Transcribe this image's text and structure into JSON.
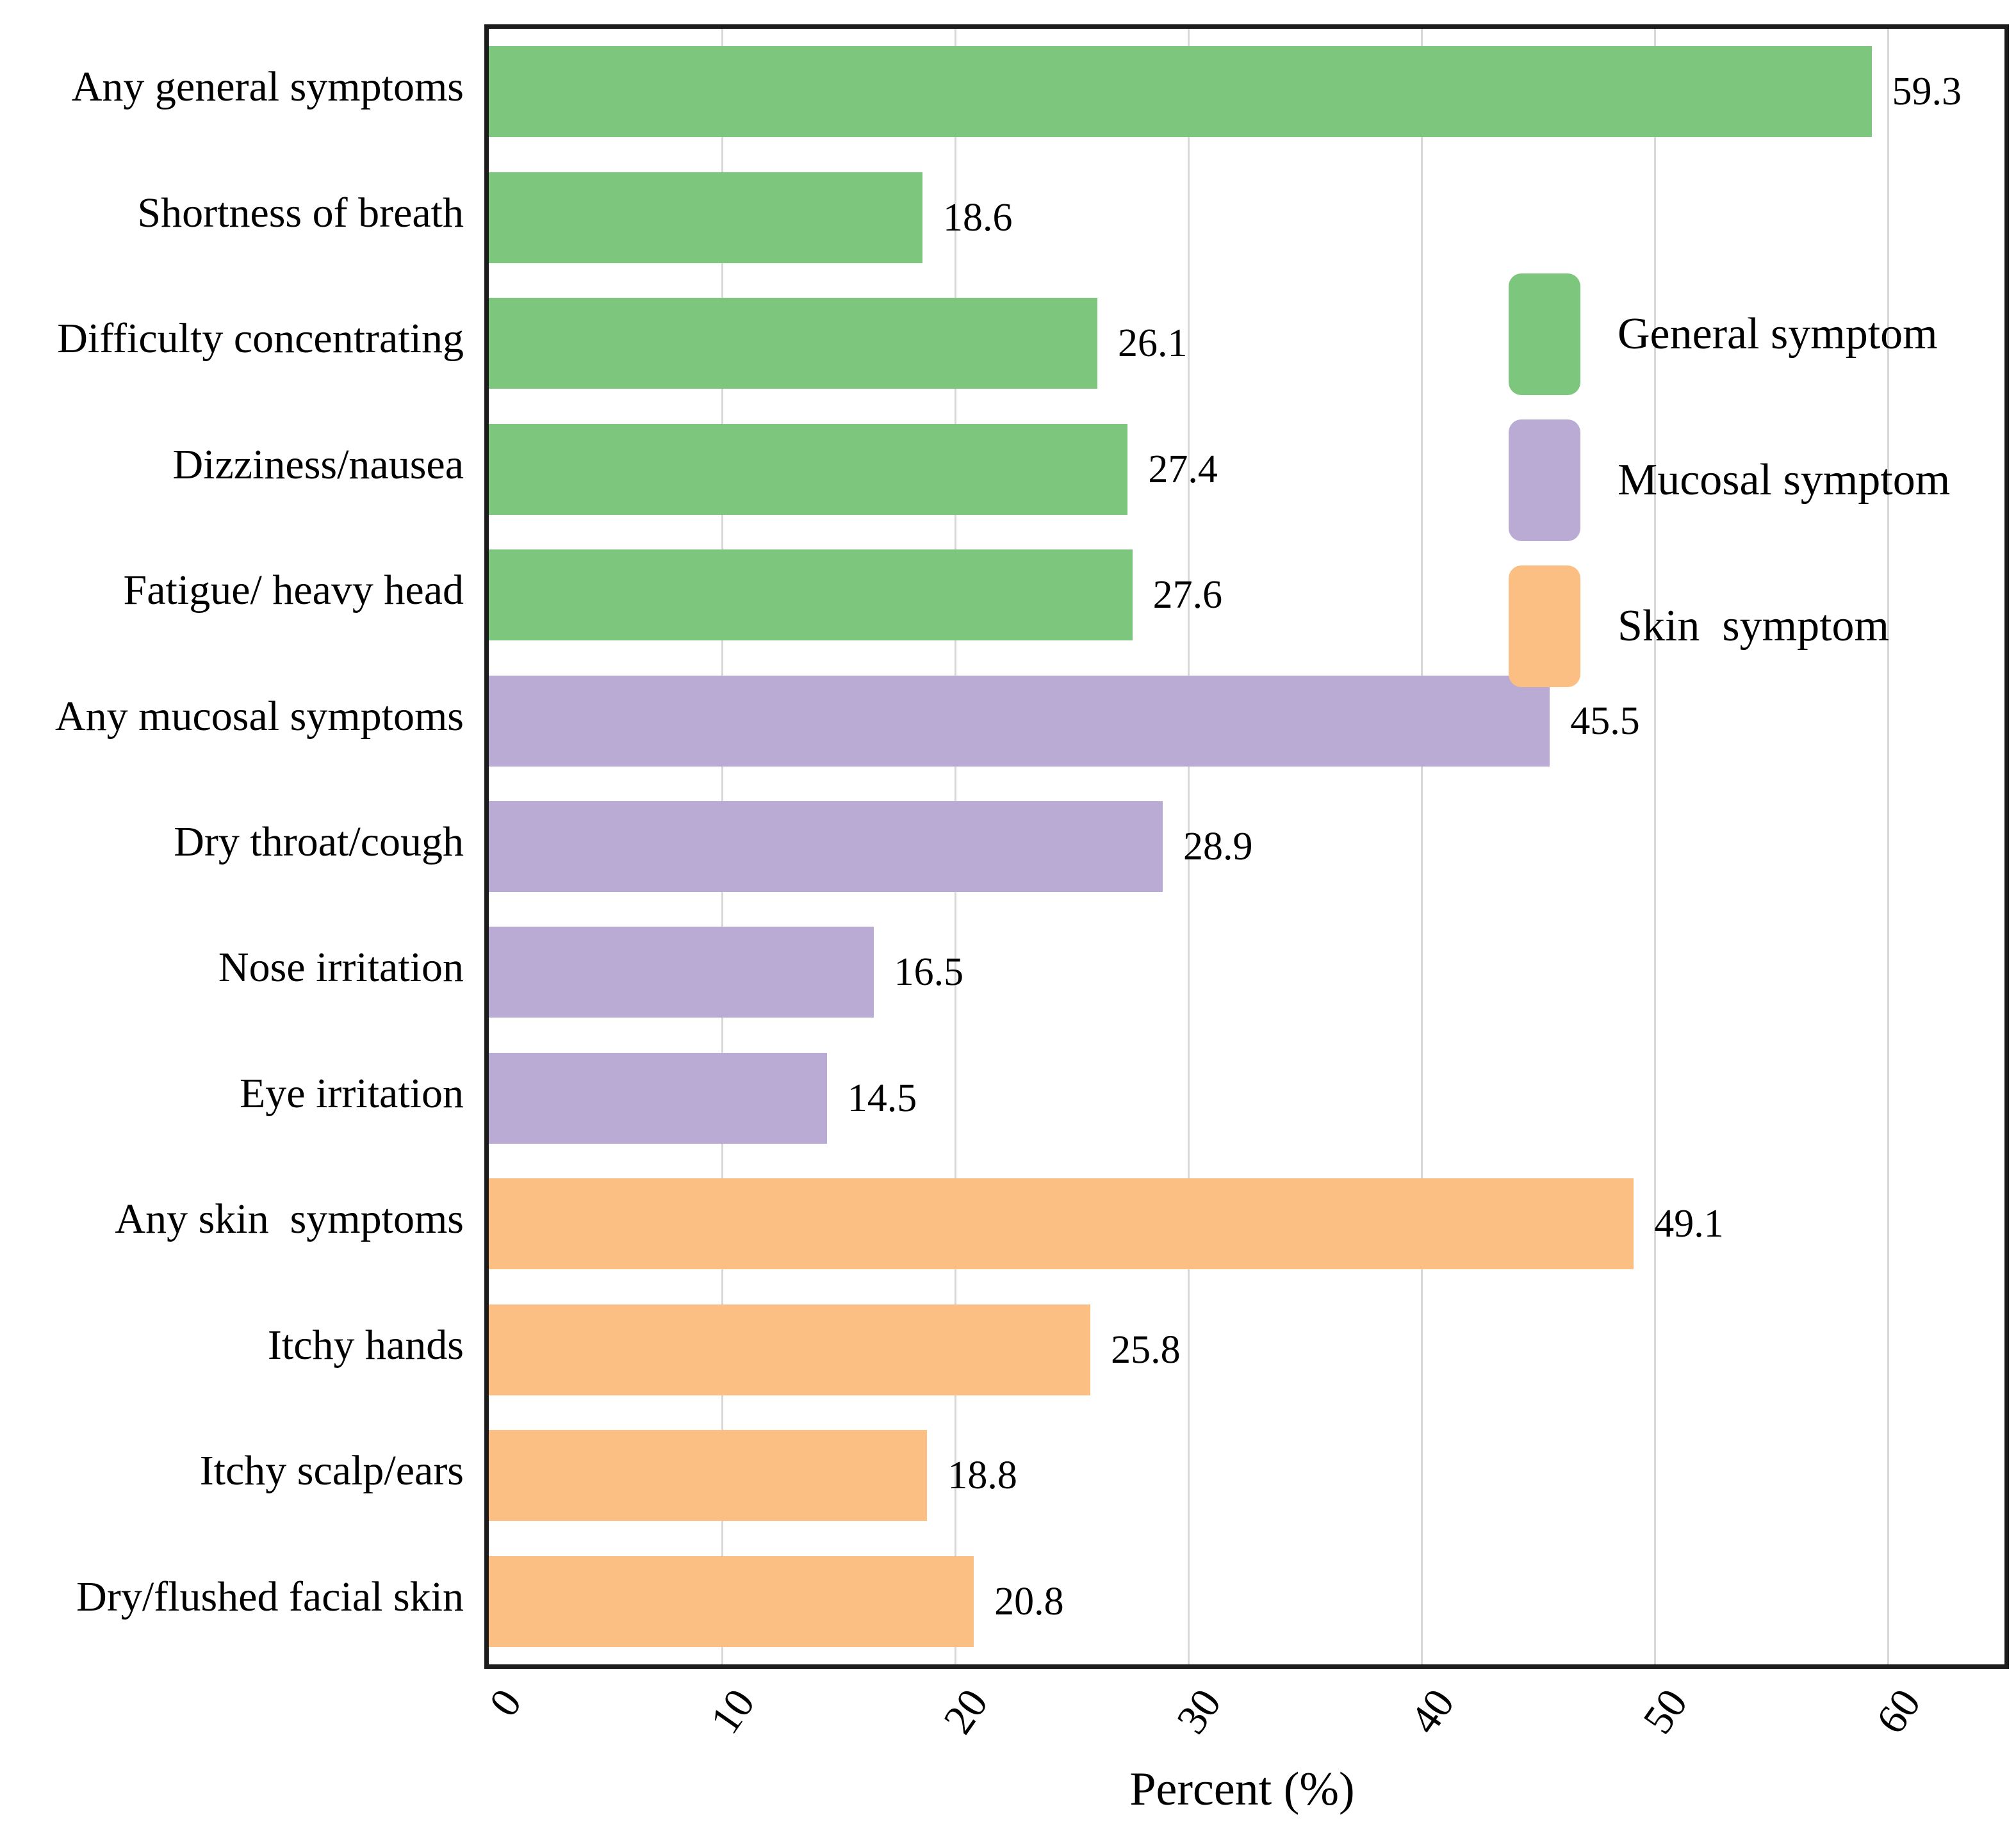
{
  "chart_data": {
    "type": "bar",
    "orientation": "horizontal",
    "title": "",
    "xlabel": "Percent (%)",
    "ylabel": "",
    "xlim": [
      0,
      65
    ],
    "xticks": [
      0,
      10,
      20,
      30,
      40,
      50,
      60
    ],
    "grid": "vertical gridlines only, light gray",
    "categories": [
      "Any general symptoms",
      "Shortness of breath",
      "Difficulty concentrating",
      "Dizziness/nausea",
      "Fatigue/ heavy head",
      "Any mucosal symptoms",
      "Dry throat/cough",
      "Nose irritation",
      "Eye irritation",
      "Any skin  symptoms",
      "Itchy hands",
      "Itchy scalp/ears",
      "Dry/flushed facial skin"
    ],
    "values": [
      59.3,
      18.6,
      26.1,
      27.4,
      27.6,
      45.5,
      28.9,
      16.5,
      14.5,
      49.1,
      25.8,
      18.8,
      20.8
    ],
    "value_labels": [
      "59.3",
      "18.6",
      "26.1",
      "27.4",
      "27.6",
      "45.5",
      "28.9",
      "16.5",
      "14.5",
      "49.1",
      "25.8",
      "18.8",
      "20.8"
    ],
    "groups": [
      "general",
      "general",
      "general",
      "general",
      "general",
      "mucosal",
      "mucosal",
      "mucosal",
      "mucosal",
      "skin",
      "skin",
      "skin",
      "skin"
    ],
    "group_colors": {
      "general": "#7dc67e",
      "mucosal": "#b9abd4",
      "skin": "#fcbf83"
    },
    "legend": {
      "position": "upper right, inside plot, no frame",
      "entries": [
        {
          "label": "General symptom",
          "group": "general",
          "color": "#7dc67e"
        },
        {
          "label": "Mucosal symptom",
          "group": "mucosal",
          "color": "#b9abd4"
        },
        {
          "label": "Skin  symptom",
          "group": "skin",
          "color": "#fcbf83"
        }
      ]
    }
  },
  "style_colors": {
    "gridline": "#d8d8d8",
    "frame": "#1c1c1c",
    "text": "#000000",
    "background": "#ffffff"
  }
}
